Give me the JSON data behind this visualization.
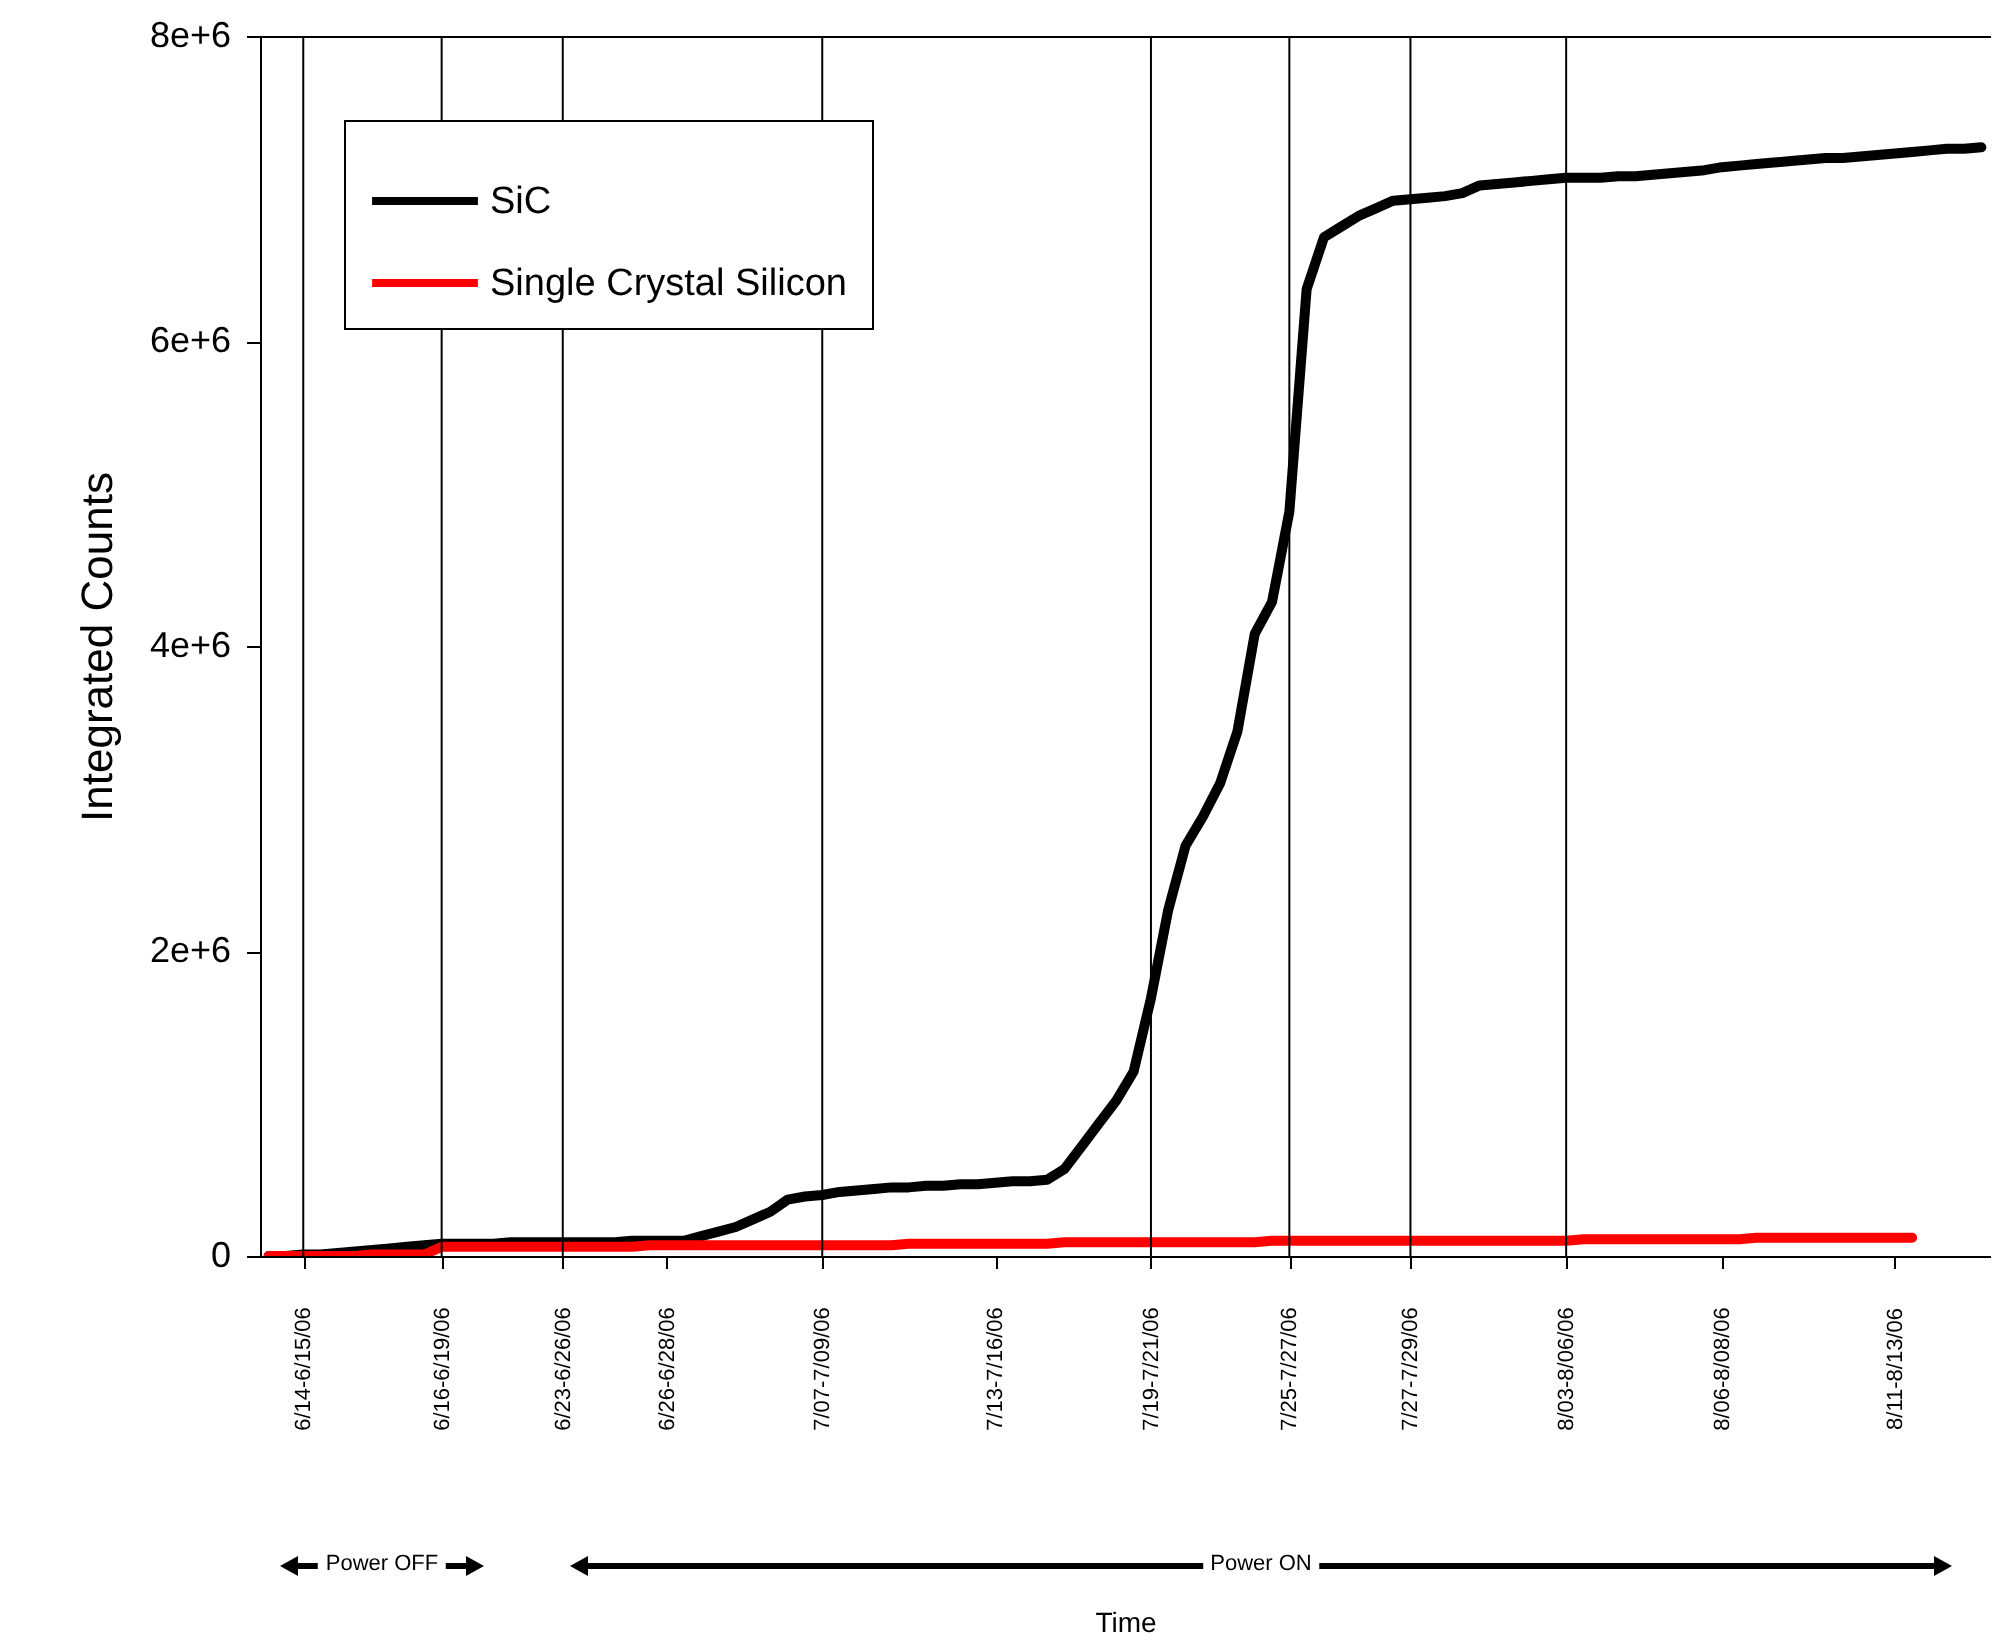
{
  "chart_data": {
    "type": "line",
    "ylabel": "Integrated Counts",
    "categories": [
      null,
      null,
      "6/14-6/15/06",
      null,
      null,
      null,
      null,
      null,
      null,
      null,
      "6/16-6/19/06",
      null,
      null,
      null,
      null,
      null,
      null,
      "6/23-6/26/06",
      null,
      null,
      null,
      null,
      null,
      "6/26-6/28/06",
      null,
      null,
      null,
      null,
      null,
      null,
      null,
      null,
      "7/07-7/09/06",
      null,
      null,
      null,
      null,
      null,
      null,
      null,
      null,
      null,
      "7/13-7/16/06",
      null,
      null,
      null,
      null,
      null,
      null,
      null,
      null,
      "7/19-7/21/06",
      null,
      null,
      null,
      null,
      null,
      null,
      null,
      "7/25-7/27/06",
      null,
      null,
      null,
      null,
      null,
      null,
      "7/27-7/29/06",
      null,
      null,
      null,
      null,
      null,
      null,
      null,
      null,
      "8/03-8/06/06",
      null,
      null,
      null,
      null,
      null,
      null,
      null,
      null,
      "8/06-8/08/06",
      null,
      null,
      null,
      null,
      null,
      null,
      null,
      null,
      null,
      "8/11-8/13/06",
      null,
      null,
      null,
      null,
      null
    ],
    "ylim": [
      0,
      8000000
    ],
    "yticks": [
      {
        "value": 0,
        "label": "0"
      },
      {
        "value": 2000000,
        "label": "2e+6"
      },
      {
        "value": 4000000,
        "label": "4e+6"
      },
      {
        "value": 6000000,
        "label": "6e+6"
      },
      {
        "value": 8000000,
        "label": "8e+6"
      }
    ],
    "grid": false,
    "legend": "top left",
    "marker": "none",
    "line_style": "solid",
    "series": [
      {
        "name": "SiC",
        "color": "#000000",
        "values": [
          0,
          0,
          10000,
          10000,
          20000,
          30000,
          40000,
          50000,
          60000,
          70000,
          80000,
          80000,
          80000,
          80000,
          90000,
          90000,
          90000,
          90000,
          90000,
          90000,
          90000,
          100000,
          100000,
          100000,
          100000,
          130000,
          160000,
          190000,
          240000,
          290000,
          370000,
          390000,
          400000,
          420000,
          430000,
          440000,
          450000,
          450000,
          460000,
          460000,
          470000,
          470000,
          480000,
          490000,
          490000,
          500000,
          570000,
          720000,
          870000,
          1020000,
          1210000,
          1690000,
          2270000,
          2690000,
          2880000,
          3100000,
          3440000,
          4080000,
          4290000,
          4880000,
          6340000,
          6680000,
          6750000,
          6820000,
          6870000,
          6920000,
          6930000,
          6940000,
          6950000,
          6970000,
          7020000,
          7030000,
          7040000,
          7050000,
          7060000,
          7070000,
          7070000,
          7070000,
          7080000,
          7080000,
          7090000,
          7100000,
          7110000,
          7120000,
          7140000,
          7150000,
          7160000,
          7170000,
          7180000,
          7190000,
          7200000,
          7200000,
          7210000,
          7220000,
          7230000,
          7240000,
          7250000,
          7260000,
          7260000,
          7270000
        ]
      },
      {
        "name": "Single Crystal Silicon",
        "color": "#ff0000",
        "values": [
          0,
          0,
          0,
          0,
          0,
          0,
          10000,
          10000,
          10000,
          10000,
          60000,
          60000,
          60000,
          60000,
          60000,
          60000,
          60000,
          60000,
          60000,
          60000,
          60000,
          60000,
          70000,
          70000,
          70000,
          70000,
          70000,
          70000,
          70000,
          70000,
          70000,
          70000,
          70000,
          70000,
          70000,
          70000,
          70000,
          80000,
          80000,
          80000,
          80000,
          80000,
          80000,
          80000,
          80000,
          80000,
          90000,
          90000,
          90000,
          90000,
          90000,
          90000,
          90000,
          90000,
          90000,
          90000,
          90000,
          90000,
          100000,
          100000,
          100000,
          100000,
          100000,
          100000,
          100000,
          100000,
          100000,
          100000,
          100000,
          100000,
          100000,
          100000,
          100000,
          100000,
          100000,
          100000,
          110000,
          110000,
          110000,
          110000,
          110000,
          110000,
          110000,
          110000,
          110000,
          110000,
          120000,
          120000,
          120000,
          120000,
          120000,
          120000,
          120000,
          120000,
          120000,
          120000,
          null,
          null,
          null,
          null
        ]
      }
    ],
    "ref_lines": [
      {
        "axis": "x",
        "value": "6/14-6/15/06"
      },
      {
        "axis": "x",
        "value": "6/16-6/19/06"
      },
      {
        "axis": "x",
        "value": "6/23-6/26/06"
      },
      {
        "axis": "x",
        "value": "7/07-7/09/06"
      },
      {
        "axis": "x",
        "value": "7/19-7/21/06"
      },
      {
        "axis": "x",
        "value": "7/25-7/27/06"
      },
      {
        "axis": "x",
        "value": "7/27-7/29/06"
      },
      {
        "axis": "x",
        "value": "8/03-8/06/06"
      }
    ],
    "annotations": [
      "Power OFF",
      "Power ON",
      "Time"
    ]
  }
}
